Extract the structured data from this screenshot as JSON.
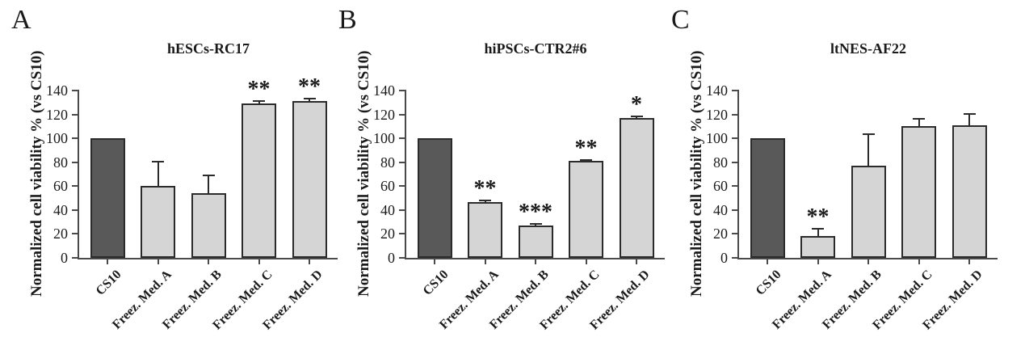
{
  "colors": {
    "background": "#ffffff",
    "reference_bar_fill": "#595959",
    "treatment_bar_fill": "#d5d5d5",
    "bar_border": "#2b2b2b",
    "axis": "#4a4a4a",
    "text": "#1a1a1a"
  },
  "chart_data": [
    {
      "type": "bar",
      "panel_label": "A",
      "title": "hESCs-RC17",
      "ylabel": "Normalized cell viability % (vs CS10)",
      "xlabel": "",
      "categories": [
        "CS10",
        "Freez. Med. A",
        "Freez. Med. B",
        "Freez. Med. C",
        "Freez. Med. D"
      ],
      "values": [
        100,
        60,
        54,
        129,
        131
      ],
      "errors_plus": [
        0,
        21,
        16,
        3,
        3
      ],
      "significance": [
        "",
        "",
        "",
        "**",
        "**"
      ],
      "ylim": [
        0,
        140
      ],
      "yticks": [
        0,
        20,
        40,
        60,
        80,
        100,
        120,
        140
      ],
      "grid": false,
      "legend": false,
      "bar_fills": [
        "#595959",
        "#d5d5d5",
        "#d5d5d5",
        "#d5d5d5",
        "#d5d5d5"
      ]
    },
    {
      "type": "bar",
      "panel_label": "B",
      "title": "hiPSCs-CTR2#6",
      "ylabel": "Normalized cell viability % (vs CS10)",
      "xlabel": "",
      "categories": [
        "CS10",
        "Freez. Med. A",
        "Freez. Med. B",
        "Freez. Med. C",
        "Freez. Med. D"
      ],
      "values": [
        100,
        47,
        27,
        81,
        117
      ],
      "errors_plus": [
        0,
        2,
        2,
        1.5,
        2
      ],
      "significance": [
        "",
        "**",
        "***",
        "**",
        "*"
      ],
      "ylim": [
        0,
        140
      ],
      "yticks": [
        0,
        20,
        40,
        60,
        80,
        100,
        120,
        140
      ],
      "grid": false,
      "legend": false,
      "bar_fills": [
        "#595959",
        "#d5d5d5",
        "#d5d5d5",
        "#d5d5d5",
        "#d5d5d5"
      ]
    },
    {
      "type": "bar",
      "panel_label": "C",
      "title": "ltNES-AF22",
      "ylabel": "Normalized cell viability % (vs CS10)",
      "xlabel": "",
      "categories": [
        "CS10",
        "Freez. Med. A",
        "Freez. Med. B",
        "Freez. Med. C",
        "Freez. Med. D"
      ],
      "values": [
        100,
        18,
        77,
        110,
        111
      ],
      "errors_plus": [
        0,
        7,
        27,
        7,
        10
      ],
      "significance": [
        "",
        "**",
        "",
        "",
        ""
      ],
      "ylim": [
        0,
        140
      ],
      "yticks": [
        0,
        20,
        40,
        60,
        80,
        100,
        120,
        140
      ],
      "grid": false,
      "legend": false,
      "bar_fills": [
        "#595959",
        "#d5d5d5",
        "#d5d5d5",
        "#d5d5d5",
        "#d5d5d5"
      ]
    }
  ]
}
